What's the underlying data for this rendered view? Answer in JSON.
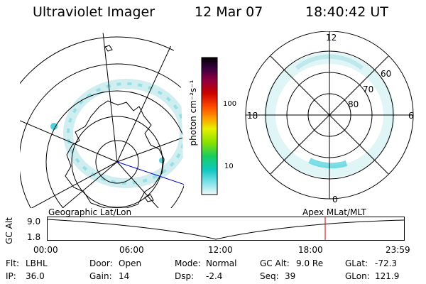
{
  "header": {
    "title": "Ultraviolet Imager",
    "date": "12 Mar 07",
    "time": "18:40:42 UT"
  },
  "colorbar": {
    "unit_label": "photon cm⁻²s⁻¹",
    "ticks": [
      "100",
      "10"
    ],
    "colors": [
      "#000000",
      "#2a0030",
      "#6b0044",
      "#9a0010",
      "#cc0000",
      "#ff2a00",
      "#ff7a00",
      "#ffcc00",
      "#e8f000",
      "#aaf000",
      "#55e000",
      "#14d060",
      "#10c8b0",
      "#40d8e0",
      "#a0e8f0",
      "#e8f8f8"
    ]
  },
  "geo_map": {
    "label": "Geographic Lat/Lon"
  },
  "polar_plot": {
    "label": "Apex MLat/MLT",
    "mlt_labels": {
      "top": "12",
      "left": "18",
      "right": "6",
      "bottom": "0"
    },
    "lat_labels": [
      "60",
      "70",
      "80"
    ]
  },
  "altitude_plot": {
    "ylabel": "GC Alt",
    "y_ticks": [
      "9.0",
      "1.8"
    ],
    "x_ticks": [
      "00:00",
      "06:00",
      "12:00",
      "18:00",
      "23:59"
    ],
    "current_time_marker_hours": 18.68,
    "line_color": "#cc0000"
  },
  "info": {
    "filter_label": "Flt:",
    "filter_value": "LBHL",
    "ip_label": "IP:",
    "ip_value": "36.0",
    "door_label": "Door:",
    "door_value": "Open",
    "gain_label": "Gain:",
    "gain_value": "14",
    "mode_label": "Mode:",
    "mode_value": "Normal",
    "dsp_label": "Dsp:",
    "dsp_value": "-2.4",
    "gcalt_label": "GC Alt:",
    "gcalt_value": "9.0 Re",
    "seq_label": "Seq:",
    "seq_value": "39",
    "glat_label": "GLat:",
    "glat_value": "-72.3",
    "glon_label": "GLon:",
    "glon_value": "121.9"
  }
}
